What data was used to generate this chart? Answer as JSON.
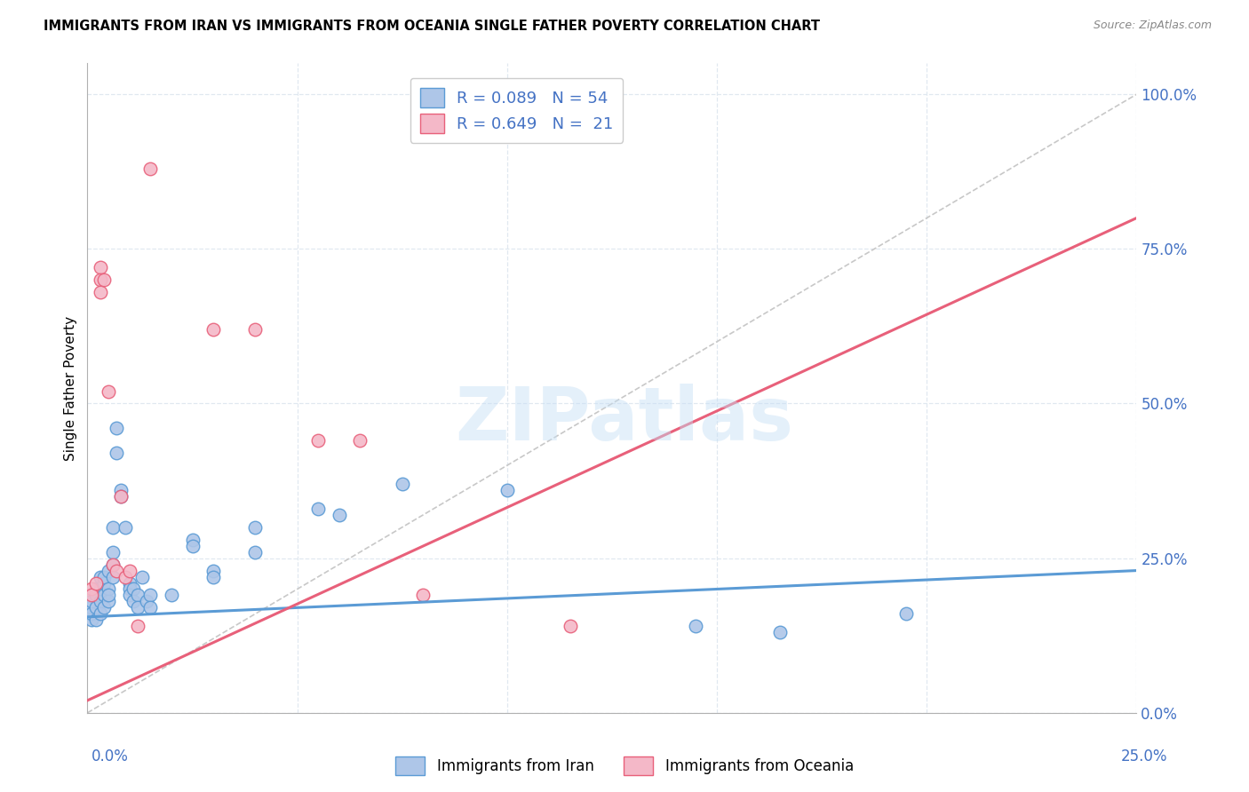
{
  "title": "IMMIGRANTS FROM IRAN VS IMMIGRANTS FROM OCEANIA SINGLE FATHER POVERTY CORRELATION CHART",
  "source": "Source: ZipAtlas.com",
  "ylabel": "Single Father Poverty",
  "ytick_labels": [
    "0.0%",
    "25.0%",
    "50.0%",
    "75.0%",
    "100.0%"
  ],
  "ytick_vals": [
    0.0,
    0.25,
    0.5,
    0.75,
    1.0
  ],
  "legend_iran": "R = 0.089   N = 54",
  "legend_oceania": "R = 0.649   N =  21",
  "legend_bottom_iran": "Immigrants from Iran",
  "legend_bottom_oceania": "Immigrants from Oceania",
  "iran_color": "#aec6e8",
  "iran_edge_color": "#5b9bd5",
  "oceania_color": "#f4b8c8",
  "oceania_edge_color": "#e8607a",
  "iran_line_color": "#5b9bd5",
  "oceania_line_color": "#e8607a",
  "diagonal_color": "#c8c8c8",
  "background_color": "#ffffff",
  "grid_color": "#e0e8f0",
  "text_blue": "#4472c4",
  "xlim": [
    0.0,
    0.25
  ],
  "ylim": [
    0.0,
    1.05
  ],
  "iran_line_y0": 0.155,
  "iran_line_y1": 0.23,
  "oceania_line_y0": 0.02,
  "oceania_line_y1": 0.8,
  "iran_points": [
    [
      0.001,
      0.17
    ],
    [
      0.001,
      0.15
    ],
    [
      0.001,
      0.16
    ],
    [
      0.001,
      0.18
    ],
    [
      0.002,
      0.2
    ],
    [
      0.002,
      0.17
    ],
    [
      0.002,
      0.19
    ],
    [
      0.002,
      0.15
    ],
    [
      0.003,
      0.22
    ],
    [
      0.003,
      0.18
    ],
    [
      0.003,
      0.2
    ],
    [
      0.003,
      0.16
    ],
    [
      0.004,
      0.21
    ],
    [
      0.004,
      0.19
    ],
    [
      0.004,
      0.22
    ],
    [
      0.004,
      0.17
    ],
    [
      0.005,
      0.2
    ],
    [
      0.005,
      0.18
    ],
    [
      0.005,
      0.23
    ],
    [
      0.005,
      0.19
    ],
    [
      0.006,
      0.24
    ],
    [
      0.006,
      0.22
    ],
    [
      0.006,
      0.26
    ],
    [
      0.006,
      0.3
    ],
    [
      0.007,
      0.46
    ],
    [
      0.007,
      0.42
    ],
    [
      0.008,
      0.36
    ],
    [
      0.008,
      0.35
    ],
    [
      0.009,
      0.3
    ],
    [
      0.01,
      0.21
    ],
    [
      0.01,
      0.2
    ],
    [
      0.01,
      0.19
    ],
    [
      0.011,
      0.2
    ],
    [
      0.011,
      0.18
    ],
    [
      0.012,
      0.19
    ],
    [
      0.012,
      0.17
    ],
    [
      0.013,
      0.22
    ],
    [
      0.014,
      0.18
    ],
    [
      0.015,
      0.19
    ],
    [
      0.015,
      0.17
    ],
    [
      0.02,
      0.19
    ],
    [
      0.025,
      0.28
    ],
    [
      0.025,
      0.27
    ],
    [
      0.03,
      0.23
    ],
    [
      0.03,
      0.22
    ],
    [
      0.04,
      0.3
    ],
    [
      0.04,
      0.26
    ],
    [
      0.055,
      0.33
    ],
    [
      0.06,
      0.32
    ],
    [
      0.075,
      0.37
    ],
    [
      0.1,
      0.36
    ],
    [
      0.145,
      0.14
    ],
    [
      0.165,
      0.13
    ],
    [
      0.195,
      0.16
    ]
  ],
  "oceania_points": [
    [
      0.001,
      0.2
    ],
    [
      0.001,
      0.19
    ],
    [
      0.002,
      0.21
    ],
    [
      0.003,
      0.72
    ],
    [
      0.003,
      0.7
    ],
    [
      0.003,
      0.68
    ],
    [
      0.004,
      0.7
    ],
    [
      0.005,
      0.52
    ],
    [
      0.006,
      0.24
    ],
    [
      0.007,
      0.23
    ],
    [
      0.008,
      0.35
    ],
    [
      0.009,
      0.22
    ],
    [
      0.01,
      0.23
    ],
    [
      0.012,
      0.14
    ],
    [
      0.015,
      0.88
    ],
    [
      0.03,
      0.62
    ],
    [
      0.04,
      0.62
    ],
    [
      0.055,
      0.44
    ],
    [
      0.065,
      0.44
    ],
    [
      0.08,
      0.19
    ],
    [
      0.115,
      0.14
    ]
  ]
}
